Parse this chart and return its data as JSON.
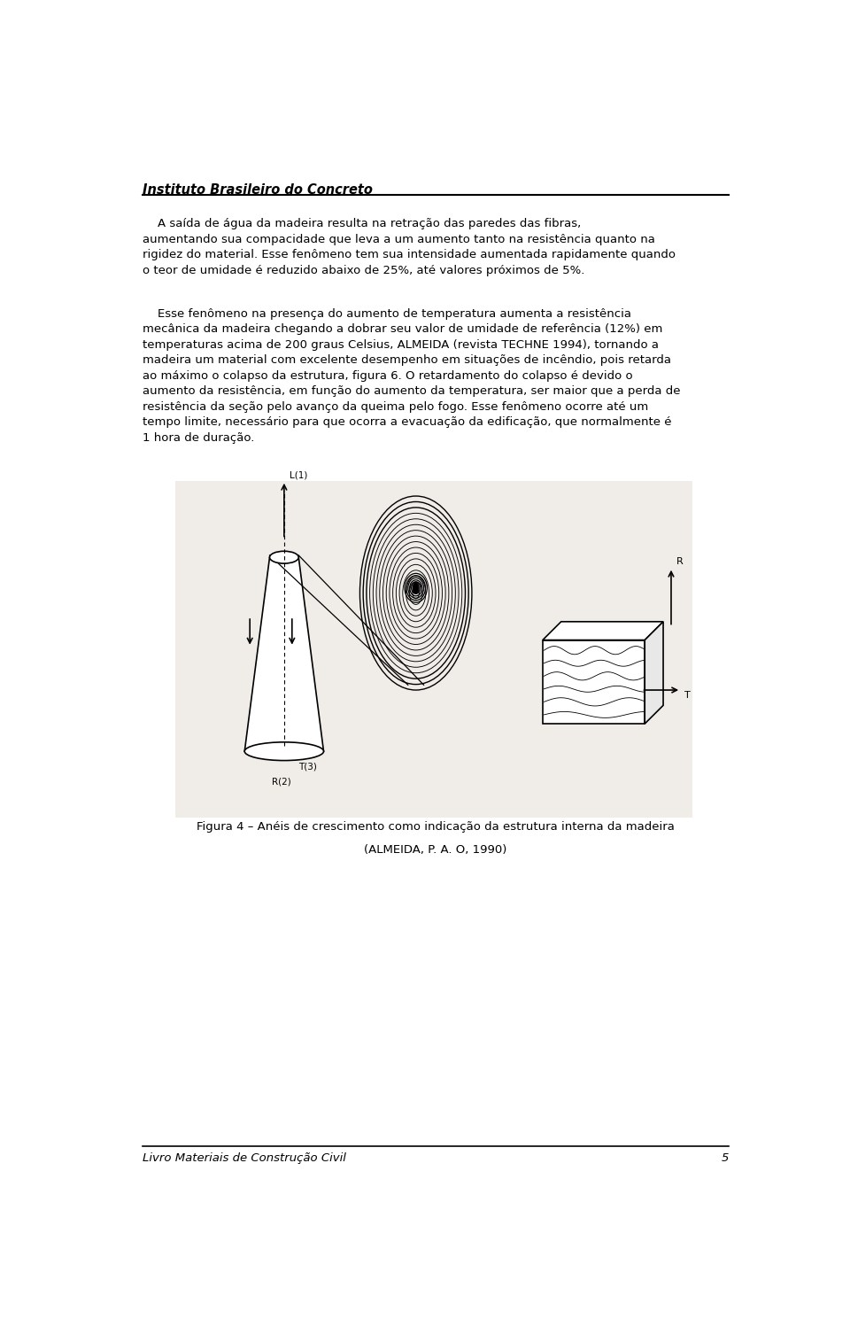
{
  "background_color": "#ffffff",
  "page_width": 9.6,
  "page_height": 14.97,
  "header_text": "Instituto Brasileiro do Concreto",
  "footer_text": "Livro Materiais de Construção Civil",
  "footer_page": "5",
  "para1_text": "    A saída de água da madeira resulta na retração das paredes das fibras,\namentando sua compacidade que leva a um aumento tanto na resistência quanto na\nrigidez do material. Esse fenômeno tem sua intensidade aumentada rapidamente quando\no teor de umidade é reduzido abaixo de 25%, até valores próximos de 5%.",
  "para2_text": "    Esse fenômeno na presença do aumento de temperatura aumenta a resistência\nmecânica da madeira chegando a dobrar seu valor de umidade de referência (12%) em\ntemperaturas acima de 200 graus Celsius, ALMEIDA (revista TECHNE 1994), tornando a\nmadeira um material com excelente desempenho em situações de incêndio, pois retarda\nao máximo o colapso da estrutura, figura 6. O retardamento do colapso é devido o\naumento da resistência, em função do aumento da temperatura, ser maior que a perda de\nresistência da seção pelo avanço da queima pelo fogo. Esse fenômeno ocorre até um\ntempo limite, necessário para que ocorra a evacuação da edificação, que normalmente é\n1 hora de duração.",
  "figure_caption_line1": "Figura 4 – Anéis de crescimento como indicação da estrutura interna da madeira",
  "figure_caption_line2": "(ALMEIDA, P. A. O, 1990)"
}
